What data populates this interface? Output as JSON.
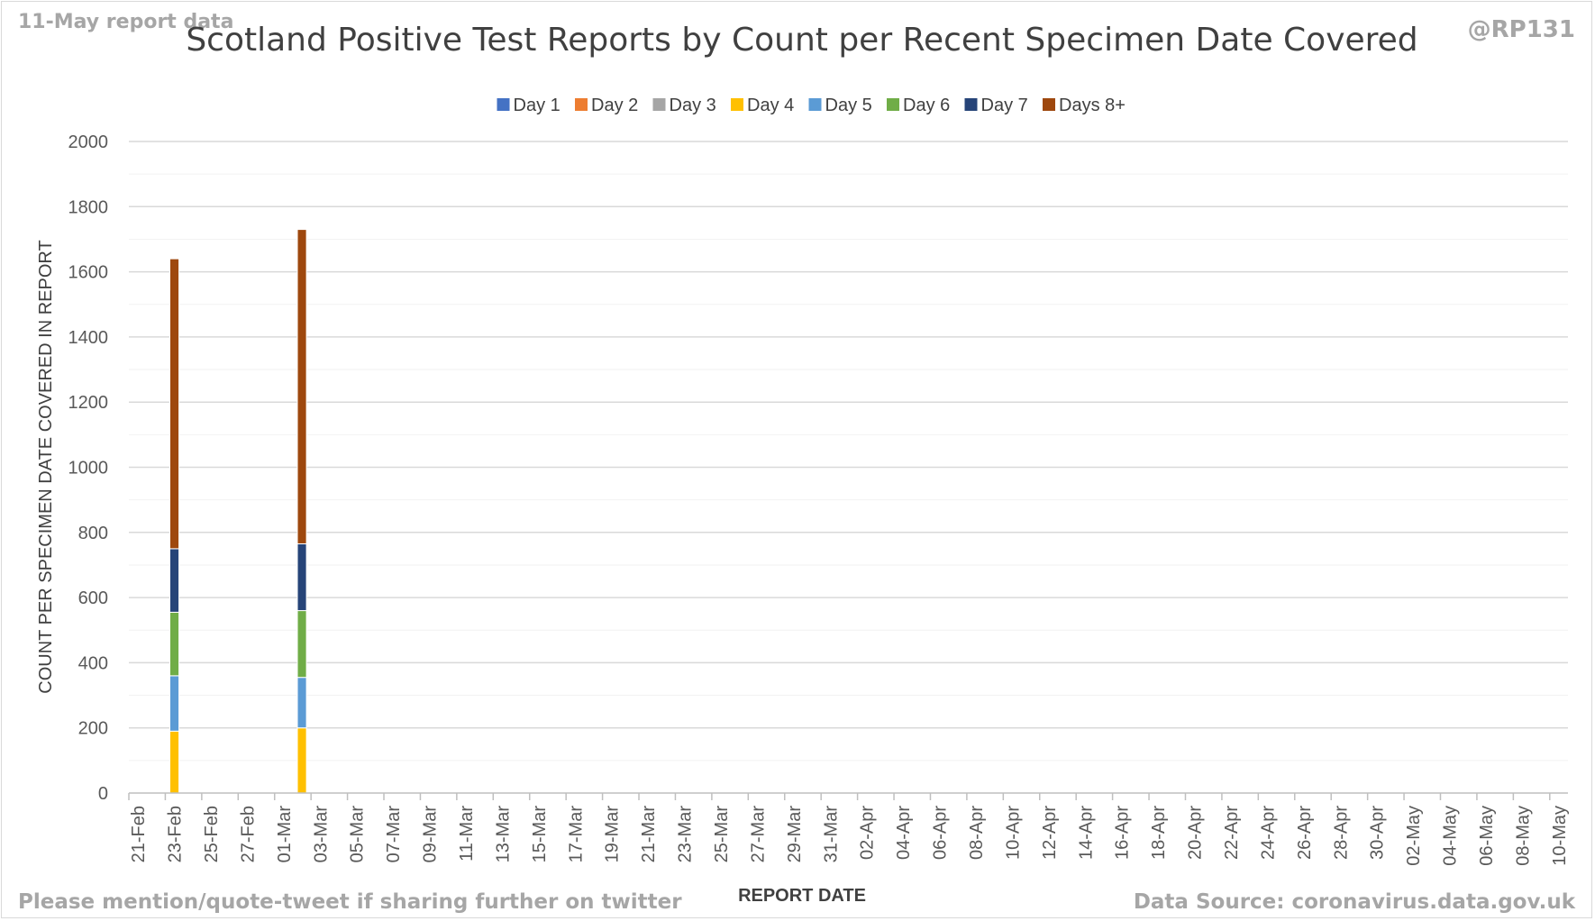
{
  "header": {
    "report_note": "11-May report data",
    "handle": "@RP131"
  },
  "footer": {
    "share_note": "Please mention/quote-tweet if sharing further on twitter",
    "source_note": "Data Source: coronavirus.data.gov.uk"
  },
  "chart_data": {
    "type": "bar",
    "stacked": true,
    "title": "Scotland Positive Test Reports by Count per Recent Specimen Date Covered",
    "xlabel": "REPORT DATE",
    "ylabel": "COUNT PER SPECIMEN DATE COVERED IN REPORT",
    "ylim": [
      0,
      2000
    ],
    "yticks": [
      0,
      200,
      400,
      600,
      800,
      1000,
      1200,
      1400,
      1600,
      1800,
      2000
    ],
    "grid": true,
    "legend_position": "top",
    "categories": [
      "21-Feb",
      "22-Feb",
      "23-Feb",
      "24-Feb",
      "25-Feb",
      "26-Feb",
      "27-Feb",
      "28-Feb",
      "01-Mar",
      "02-Mar",
      "03-Mar",
      "04-Mar",
      "05-Mar",
      "06-Mar",
      "07-Mar",
      "08-Mar",
      "09-Mar",
      "10-Mar",
      "11-Mar",
      "12-Mar",
      "13-Mar",
      "14-Mar",
      "15-Mar",
      "16-Mar",
      "17-Mar",
      "18-Mar",
      "19-Mar",
      "20-Mar",
      "21-Mar",
      "22-Mar",
      "23-Mar",
      "24-Mar",
      "25-Mar",
      "26-Mar",
      "27-Mar",
      "28-Mar",
      "29-Mar",
      "30-Mar",
      "31-Mar",
      "01-Apr",
      "02-Apr",
      "03-Apr",
      "04-Apr",
      "05-Apr",
      "06-Apr",
      "07-Apr",
      "08-Apr",
      "09-Apr",
      "10-Apr",
      "11-Apr",
      "12-Apr",
      "13-Apr",
      "14-Apr",
      "15-Apr",
      "16-Apr",
      "17-Apr",
      "18-Apr",
      "19-Apr",
      "20-Apr",
      "21-Apr",
      "22-Apr",
      "23-Apr",
      "24-Apr",
      "25-Apr",
      "26-Apr",
      "27-Apr",
      "28-Apr",
      "29-Apr",
      "30-Apr",
      "01-May",
      "02-May",
      "03-May",
      "04-May",
      "05-May",
      "06-May",
      "07-May",
      "08-May",
      "09-May",
      "10-May"
    ],
    "tick_labels": [
      "21-Feb",
      "23-Feb",
      "25-Feb",
      "27-Feb",
      "01-Mar",
      "03-Mar",
      "05-Mar",
      "07-Mar",
      "09-Mar",
      "11-Mar",
      "13-Mar",
      "15-Mar",
      "17-Mar",
      "19-Mar",
      "21-Mar",
      "23-Mar",
      "25-Mar",
      "27-Mar",
      "29-Mar",
      "31-Mar",
      "02-Apr",
      "04-Apr",
      "06-Apr",
      "08-Apr",
      "10-Apr",
      "12-Apr",
      "14-Apr",
      "16-Apr",
      "18-Apr",
      "20-Apr",
      "22-Apr",
      "24-Apr",
      "26-Apr",
      "28-Apr",
      "30-Apr",
      "02-May",
      "04-May",
      "06-May",
      "08-May",
      "10-May"
    ],
    "bars": [
      {
        "category": "23-Feb",
        "values": {
          "Day 1": 0,
          "Day 2": 0,
          "Day 3": 0,
          "Day 4": 190,
          "Day 5": 170,
          "Day 6": 195,
          "Day 7": 195,
          "Days 8+": 890
        }
      },
      {
        "category": "02-Mar",
        "values": {
          "Day 1": 0,
          "Day 2": 0,
          "Day 3": 0,
          "Day 4": 200,
          "Day 5": 155,
          "Day 6": 205,
          "Day 7": 205,
          "Days 8+": 965
        }
      }
    ],
    "series": [
      {
        "name": "Day 1",
        "color": "#4472c4"
      },
      {
        "name": "Day 2",
        "color": "#ed7d31"
      },
      {
        "name": "Day 3",
        "color": "#a5a5a5"
      },
      {
        "name": "Day 4",
        "color": "#ffc000"
      },
      {
        "name": "Day 5",
        "color": "#5b9bd5"
      },
      {
        "name": "Day 6",
        "color": "#70ad47"
      },
      {
        "name": "Day 7",
        "color": "#264478"
      },
      {
        "name": "Days 8+",
        "color": "#9e480e"
      }
    ]
  }
}
